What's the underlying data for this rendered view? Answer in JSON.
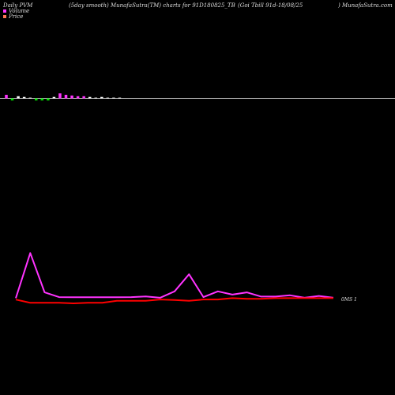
{
  "header": {
    "left": "Daily PVM",
    "center1": "(5day smooth) MunafaSutra(TM) charts for 91D180825_TB",
    "center2": "(Goi  Tbill 91d-18/08/25",
    "right": ") MunafaSutra.com"
  },
  "legend": {
    "volume_label": "Volume",
    "price_label": "Price"
  },
  "colors": {
    "background": "#000000",
    "volume_line": "#ff33ff",
    "price_line": "#ff0000",
    "up_bar": "#ff33ff",
    "down_bar": "#00dd00",
    "neutral_bar": "#ffffff",
    "baseline": "#ffffff"
  },
  "chart_data": {
    "type": "line",
    "end_label": "0MS 1",
    "series": [
      {
        "name": "Volume",
        "values": [
          4.0,
          38.6,
          8.4,
          4.8,
          4.7,
          4.7,
          4.7,
          4.7,
          4.8,
          5.3,
          4.3,
          9.2,
          22.3,
          4.8,
          9.2,
          6.7,
          8.4,
          5.2,
          5.2,
          6.2,
          4.3,
          5.7,
          4.3
        ]
      },
      {
        "name": "Price",
        "values": [
          2.9,
          0.4,
          0.4,
          0.4,
          0.0,
          0.4,
          0.4,
          2.0,
          2.0,
          2.0,
          3.0,
          2.6,
          2.0,
          3.0,
          3.0,
          4.0,
          3.5,
          3.5,
          4.0,
          4.0,
          4.0,
          4.0,
          4.0
        ]
      }
    ],
    "mini_bars": [
      {
        "color": "up",
        "value": 5
      },
      {
        "color": "down",
        "value": 3
      },
      {
        "color": "neutral",
        "value": 3
      },
      {
        "color": "neutral",
        "value": 2
      },
      {
        "color": "neutral",
        "value": 1
      },
      {
        "color": "down",
        "value": 3
      },
      {
        "color": "down",
        "value": 3
      },
      {
        "color": "down",
        "value": 3
      },
      {
        "color": "neutral",
        "value": 2
      },
      {
        "color": "up",
        "value": 7
      },
      {
        "color": "up",
        "value": 5
      },
      {
        "color": "up",
        "value": 4
      },
      {
        "color": "up",
        "value": 3
      },
      {
        "color": "up",
        "value": 3
      },
      {
        "color": "neutral",
        "value": 2
      },
      {
        "color": "neutral",
        "value": 1
      },
      {
        "color": "neutral",
        "value": 2
      },
      {
        "color": "neutral",
        "value": 1
      },
      {
        "color": "neutral",
        "value": 1
      },
      {
        "color": "neutral",
        "value": 1
      }
    ]
  }
}
